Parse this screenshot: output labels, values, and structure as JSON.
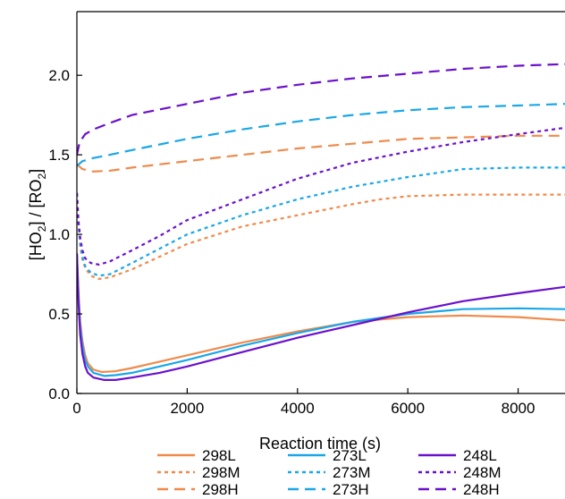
{
  "chart_data": {
    "type": "line",
    "title": "",
    "xlabel": "Reaction time (s)",
    "ylabel_parts": {
      "a": "[HO",
      "a_sub": "2",
      "b": "] / [RO",
      "b_sub": "2",
      "c": "]"
    },
    "xlim": [
      0,
      8850
    ],
    "ylim": [
      0,
      2.4
    ],
    "xticks": [
      0,
      2000,
      4000,
      6000,
      8000
    ],
    "xtick_labels": [
      "0",
      "2000",
      "4000",
      "6000",
      "8000"
    ],
    "yticks": [
      0,
      0.5,
      1.0,
      1.5,
      2.0
    ],
    "ytick_labels": [
      "0.0",
      "0.5",
      "1.0",
      "1.5",
      "2.0"
    ],
    "grid": false,
    "legend_position": "bottom",
    "series": [
      {
        "name": "298L",
        "color": "#f08a4b",
        "style": "solid",
        "points": [
          [
            0,
            0.88
          ],
          [
            30,
            0.62
          ],
          [
            60,
            0.45
          ],
          [
            100,
            0.33
          ],
          [
            150,
            0.24
          ],
          [
            200,
            0.19
          ],
          [
            300,
            0.15
          ],
          [
            450,
            0.135
          ],
          [
            700,
            0.14
          ],
          [
            1000,
            0.16
          ],
          [
            1500,
            0.2
          ],
          [
            2000,
            0.24
          ],
          [
            3000,
            0.32
          ],
          [
            4000,
            0.39
          ],
          [
            5000,
            0.45
          ],
          [
            6000,
            0.48
          ],
          [
            7000,
            0.49
          ],
          [
            8000,
            0.48
          ],
          [
            8850,
            0.46
          ]
        ]
      },
      {
        "name": "298M",
        "color": "#f08a4b",
        "style": "dotted",
        "points": [
          [
            0,
            1.26
          ],
          [
            30,
            1.05
          ],
          [
            60,
            0.93
          ],
          [
            100,
            0.84
          ],
          [
            150,
            0.79
          ],
          [
            250,
            0.74
          ],
          [
            400,
            0.72
          ],
          [
            600,
            0.73
          ],
          [
            1000,
            0.78
          ],
          [
            1500,
            0.86
          ],
          [
            2000,
            0.94
          ],
          [
            3000,
            1.05
          ],
          [
            4000,
            1.12
          ],
          [
            5000,
            1.19
          ],
          [
            5500,
            1.22
          ],
          [
            6000,
            1.24
          ],
          [
            7000,
            1.25
          ],
          [
            8000,
            1.25
          ],
          [
            8850,
            1.25
          ]
        ]
      },
      {
        "name": "298H",
        "color": "#f08a4b",
        "style": "dashed",
        "points": [
          [
            0,
            1.44
          ],
          [
            100,
            1.41
          ],
          [
            300,
            1.395
          ],
          [
            600,
            1.4
          ],
          [
            1000,
            1.42
          ],
          [
            2000,
            1.46
          ],
          [
            3000,
            1.5
          ],
          [
            4000,
            1.54
          ],
          [
            5000,
            1.57
          ],
          [
            6000,
            1.6
          ],
          [
            7000,
            1.61
          ],
          [
            8000,
            1.62
          ],
          [
            8850,
            1.62
          ]
        ]
      },
      {
        "name": "273L",
        "color": "#1aa7e8",
        "style": "solid",
        "points": [
          [
            0,
            0.88
          ],
          [
            30,
            0.6
          ],
          [
            60,
            0.42
          ],
          [
            100,
            0.3
          ],
          [
            150,
            0.21
          ],
          [
            200,
            0.17
          ],
          [
            300,
            0.13
          ],
          [
            500,
            0.11
          ],
          [
            700,
            0.115
          ],
          [
            1000,
            0.13
          ],
          [
            1500,
            0.17
          ],
          [
            2000,
            0.21
          ],
          [
            3000,
            0.3
          ],
          [
            4000,
            0.38
          ],
          [
            5000,
            0.45
          ],
          [
            6000,
            0.5
          ],
          [
            7000,
            0.53
          ],
          [
            8000,
            0.535
          ],
          [
            8850,
            0.53
          ]
        ]
      },
      {
        "name": "273M",
        "color": "#1aa7e8",
        "style": "dotted",
        "points": [
          [
            0,
            1.26
          ],
          [
            30,
            1.06
          ],
          [
            60,
            0.94
          ],
          [
            100,
            0.86
          ],
          [
            150,
            0.8
          ],
          [
            250,
            0.76
          ],
          [
            400,
            0.74
          ],
          [
            600,
            0.75
          ],
          [
            1000,
            0.82
          ],
          [
            1500,
            0.91
          ],
          [
            2000,
            1.0
          ],
          [
            3000,
            1.12
          ],
          [
            4000,
            1.22
          ],
          [
            5000,
            1.3
          ],
          [
            6000,
            1.36
          ],
          [
            7000,
            1.41
          ],
          [
            8000,
            1.42
          ],
          [
            8850,
            1.42
          ]
        ]
      },
      {
        "name": "273H",
        "color": "#1aa7e8",
        "style": "dashed",
        "points": [
          [
            0,
            1.43
          ],
          [
            100,
            1.46
          ],
          [
            300,
            1.48
          ],
          [
            600,
            1.5
          ],
          [
            1000,
            1.53
          ],
          [
            2000,
            1.6
          ],
          [
            3000,
            1.66
          ],
          [
            4000,
            1.71
          ],
          [
            5000,
            1.75
          ],
          [
            6000,
            1.78
          ],
          [
            7000,
            1.8
          ],
          [
            8000,
            1.81
          ],
          [
            8850,
            1.82
          ]
        ]
      },
      {
        "name": "248L",
        "color": "#6a11cc",
        "style": "solid",
        "points": [
          [
            0,
            0.88
          ],
          [
            30,
            0.56
          ],
          [
            60,
            0.37
          ],
          [
            100,
            0.25
          ],
          [
            150,
            0.17
          ],
          [
            200,
            0.13
          ],
          [
            300,
            0.1
          ],
          [
            500,
            0.085
          ],
          [
            700,
            0.085
          ],
          [
            1000,
            0.1
          ],
          [
            1500,
            0.13
          ],
          [
            2000,
            0.17
          ],
          [
            3000,
            0.26
          ],
          [
            4000,
            0.35
          ],
          [
            5000,
            0.43
          ],
          [
            6000,
            0.51
          ],
          [
            7000,
            0.58
          ],
          [
            8000,
            0.63
          ],
          [
            8850,
            0.67
          ]
        ]
      },
      {
        "name": "248M",
        "color": "#6a11cc",
        "style": "dotted",
        "points": [
          [
            0,
            1.26
          ],
          [
            30,
            1.08
          ],
          [
            60,
            0.98
          ],
          [
            100,
            0.9
          ],
          [
            150,
            0.85
          ],
          [
            250,
            0.82
          ],
          [
            400,
            0.81
          ],
          [
            600,
            0.83
          ],
          [
            1000,
            0.9
          ],
          [
            1500,
            0.99
          ],
          [
            2000,
            1.09
          ],
          [
            3000,
            1.22
          ],
          [
            4000,
            1.35
          ],
          [
            5000,
            1.45
          ],
          [
            6000,
            1.52
          ],
          [
            7000,
            1.58
          ],
          [
            8000,
            1.63
          ],
          [
            8850,
            1.67
          ]
        ]
      },
      {
        "name": "248H",
        "color": "#6a11cc",
        "style": "dashed",
        "points": [
          [
            0,
            1.5
          ],
          [
            50,
            1.58
          ],
          [
            150,
            1.63
          ],
          [
            300,
            1.66
          ],
          [
            600,
            1.7
          ],
          [
            1000,
            1.75
          ],
          [
            2000,
            1.82
          ],
          [
            3000,
            1.89
          ],
          [
            4000,
            1.94
          ],
          [
            5000,
            1.98
          ],
          [
            6000,
            2.01
          ],
          [
            7000,
            2.04
          ],
          [
            8000,
            2.06
          ],
          [
            8850,
            2.07
          ]
        ]
      }
    ]
  }
}
